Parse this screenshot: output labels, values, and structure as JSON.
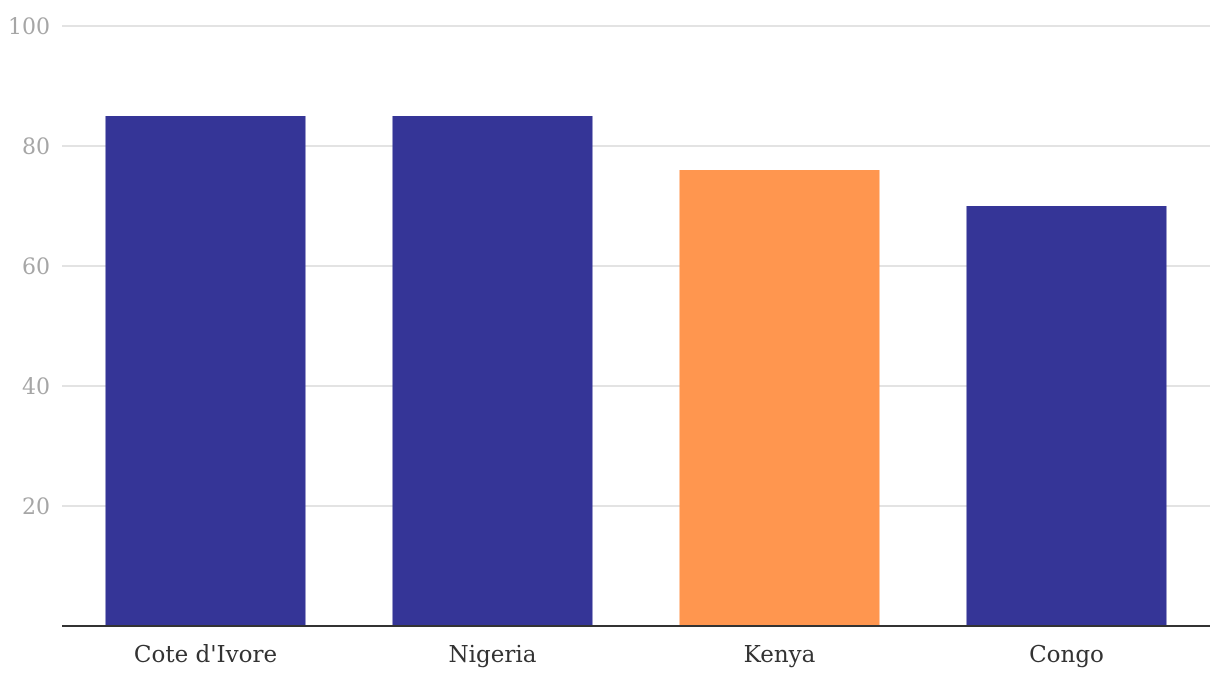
{
  "chart_data": {
    "type": "bar",
    "title": "",
    "xlabel": "",
    "ylabel": "",
    "categories": [
      "Cote d'Ivore",
      "Nigeria",
      "Kenya",
      "Congo"
    ],
    "values": [
      85,
      85,
      76,
      70
    ],
    "bar_colors": [
      "#353597",
      "#353597",
      "#ff964f",
      "#353597"
    ],
    "ylim": [
      0,
      100
    ],
    "yticks": [
      20,
      40,
      60,
      80,
      100
    ],
    "ytick_labels": [
      "20",
      "40",
      "60",
      "80",
      "100"
    ],
    "grid": true,
    "legend": "none"
  },
  "colors": {
    "default_bar": "#353597",
    "highlight_bar": "#ff964f",
    "grid": "#e3e3e3",
    "axis": "#333333",
    "tick_text": "#a6a6a6",
    "category_text": "#333333"
  }
}
